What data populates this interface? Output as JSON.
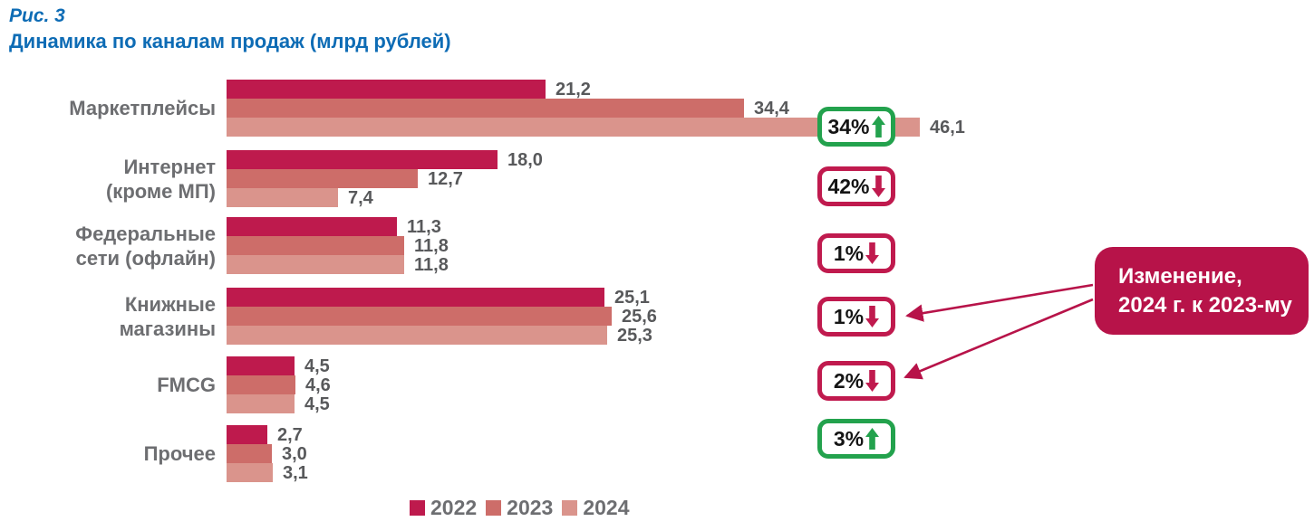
{
  "figure": {
    "label": "Рис. 3",
    "title": "Динамика по каналам продаж (млрд рублей)"
  },
  "chart_data": {
    "type": "bar",
    "orientation": "horizontal",
    "title": "Динамика по каналам продаж (млрд рублей)",
    "unit": "млрд рублей",
    "x_max": 46.1,
    "grid": false,
    "legend_position": "bottom",
    "legend": [
      "2022",
      "2023",
      "2024"
    ],
    "series_colors": {
      "2022": "#BE1A4D",
      "2023": "#CD6D69",
      "2024": "#DA948C"
    },
    "categories": [
      "Маркетплейсы",
      "Интернет (кроме МП)",
      "Федеральные сети (офлайн)",
      "Книжные магазины",
      "FMCG",
      "Прочее"
    ],
    "rows": [
      {
        "category_lines": [
          "Маркетплейсы"
        ],
        "values": [
          21.2,
          34.4,
          46.1
        ],
        "value_labels": [
          "21,2",
          "34,4",
          "46,1"
        ],
        "change": {
          "label": "34%",
          "direction": "up"
        }
      },
      {
        "category_lines": [
          "Интернет",
          "(кроме МП)"
        ],
        "values": [
          18.0,
          12.7,
          7.4
        ],
        "value_labels": [
          "18,0",
          "12,7",
          "7,4"
        ],
        "change": {
          "label": "42%",
          "direction": "down"
        }
      },
      {
        "category_lines": [
          "Федеральные",
          "сети (офлайн)"
        ],
        "values": [
          11.3,
          11.8,
          11.8
        ],
        "value_labels": [
          "11,3",
          "11,8",
          "11,8"
        ],
        "change": {
          "label": "1%",
          "direction": "down"
        }
      },
      {
        "category_lines": [
          "Книжные",
          "магазины"
        ],
        "values": [
          25.1,
          25.6,
          25.3
        ],
        "value_labels": [
          "25,1",
          "25,6",
          "25,3"
        ],
        "change": {
          "label": "1%",
          "direction": "down"
        }
      },
      {
        "category_lines": [
          "FMCG"
        ],
        "values": [
          4.5,
          4.6,
          4.5
        ],
        "value_labels": [
          "4,5",
          "4,6",
          "4,5"
        ],
        "change": {
          "label": "2%",
          "direction": "down"
        }
      },
      {
        "category_lines": [
          "Прочее"
        ],
        "values": [
          2.7,
          3.0,
          3.1
        ],
        "value_labels": [
          "2,7",
          "3,0",
          "3,1"
        ],
        "change": {
          "label": "3%",
          "direction": "up"
        }
      }
    ]
  },
  "annotation": {
    "text_lines": [
      "Изменение,",
      "2024 г. к 2023-му"
    ],
    "arrow_targets": [
      "Книжные магазины",
      "FMCG"
    ]
  },
  "colors": {
    "title_blue": "#0E6CB5",
    "bar_2022": "#BE1A4D",
    "bar_2023": "#CD6D69",
    "bar_2024": "#DA948C",
    "up_green": "#23A24D",
    "down_red": "#C01A4E",
    "annotation_bg": "#B71349",
    "category_text": "#6D6E71",
    "value_text": "#58595B"
  }
}
